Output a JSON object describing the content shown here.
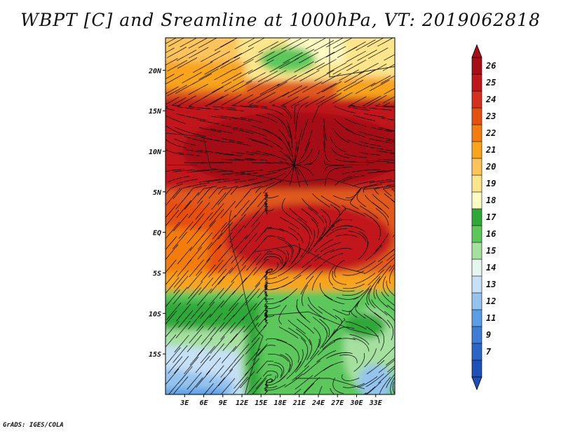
{
  "title": "WBPT [C] and Sreamline at 1000hPa, VT: 2019062818",
  "credit": "GrADS: IGES/COLA",
  "map": {
    "lon_range": [
      0,
      36
    ],
    "lat_range": [
      -20,
      24
    ],
    "lat_ticks": [
      "20N",
      "15N",
      "10N",
      "5N",
      "EQ",
      "5S",
      "10S",
      "15S"
    ],
    "lat_values": [
      20,
      15,
      10,
      5,
      0,
      -5,
      -10,
      -15
    ],
    "lon_ticks": [
      "3E",
      "6E",
      "9E",
      "12E",
      "15E",
      "18E",
      "21E",
      "24E",
      "27E",
      "30E",
      "33E"
    ],
    "lon_values": [
      3,
      6,
      9,
      12,
      15,
      18,
      21,
      24,
      27,
      30,
      33
    ]
  },
  "colorbar": {
    "labels": [
      "26",
      "25",
      "24",
      "23",
      "22",
      "21",
      "20",
      "19",
      "18",
      "17",
      "16",
      "15",
      "14",
      "13",
      "12",
      "11",
      "9",
      "7"
    ],
    "colors": [
      "#a50f15",
      "#c0181a",
      "#d7301f",
      "#e6500f",
      "#f27d0c",
      "#f8a41c",
      "#fcc45a",
      "#fde58c",
      "#fffbc4",
      "#2fa838",
      "#5cc85c",
      "#a6e0a0",
      "#e6f6f0",
      "#c6e0f6",
      "#94c4ee",
      "#5a9ee4",
      "#3c7ed8",
      "#2c66c8",
      "#1f50b8"
    ]
  }
}
